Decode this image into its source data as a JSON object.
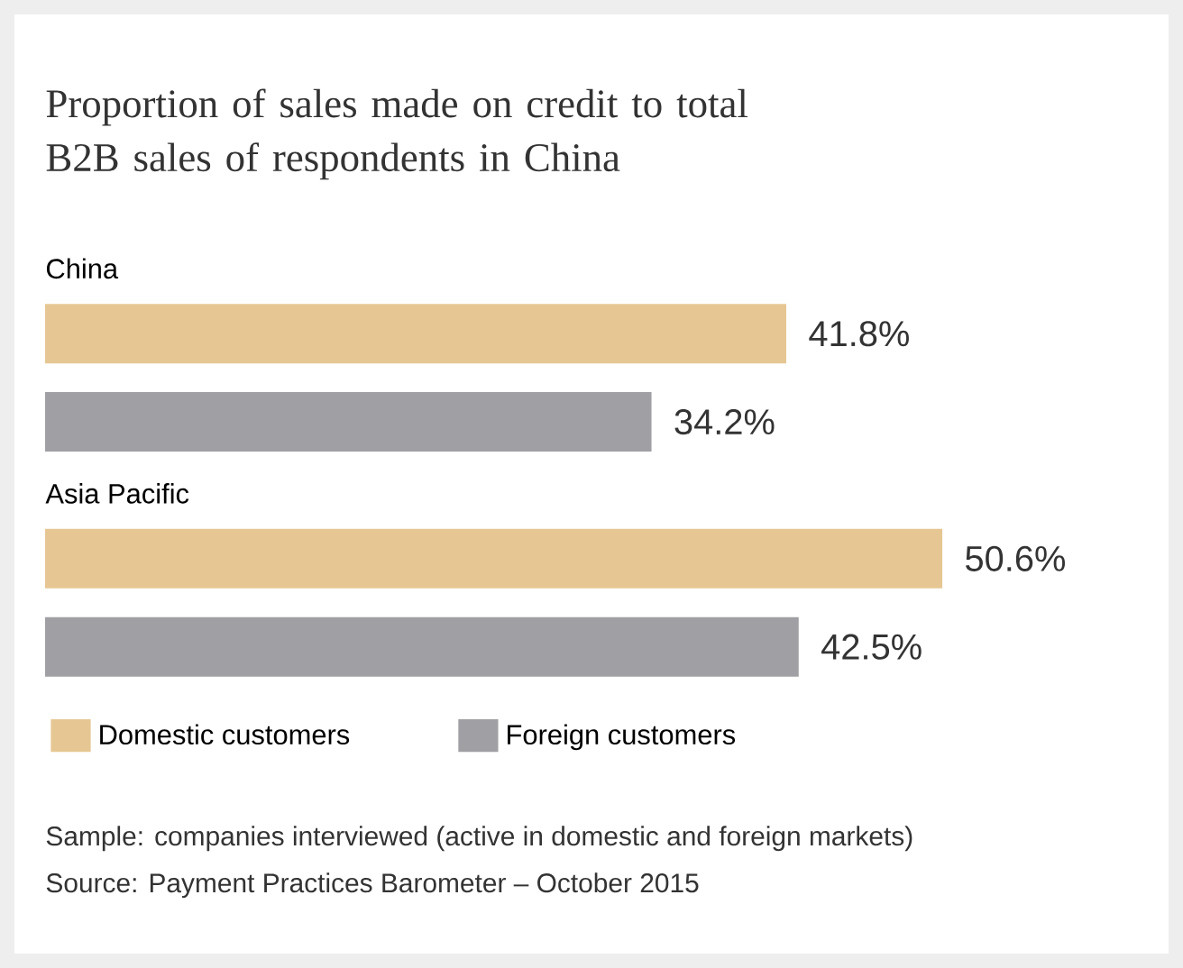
{
  "chart_data": {
    "type": "bar",
    "orientation": "horizontal",
    "title": "Proportion of sales made on credit to total B2B sales of respondents in China",
    "categories": [
      "China",
      "Asia Pacific"
    ],
    "series": [
      {
        "name": "Domestic customers",
        "color": "#e6c793",
        "values": [
          41.8,
          50.6
        ],
        "value_labels": [
          "41.8%",
          "50.6%"
        ]
      },
      {
        "name": "Foreign customers",
        "color": "#a0a0a4",
        "values": [
          34.2,
          42.5
        ],
        "value_labels": [
          "34.2%",
          "42.5%"
        ]
      }
    ],
    "legend": "bottom",
    "tick_labels": false,
    "grid": false,
    "annotations": [
      "Sample: companies interviewed (active in domestic and foreign markets)",
      "Source: Payment Practices Barometer – October 2015"
    ]
  }
}
